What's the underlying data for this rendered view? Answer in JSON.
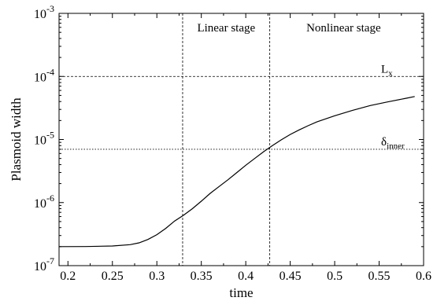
{
  "chart_data": {
    "type": "line",
    "xlabel": "time",
    "ylabel": "Plasmoid width",
    "xlim": [
      0.19,
      0.6
    ],
    "ylim": [
      1e-07,
      0.001
    ],
    "yscale": "log",
    "grid": false,
    "x_ticks": [
      {
        "value": 0.2,
        "label": "0.2"
      },
      {
        "value": 0.25,
        "label": "0.25"
      },
      {
        "value": 0.3,
        "label": "0.3"
      },
      {
        "value": 0.35,
        "label": "0.35"
      },
      {
        "value": 0.4,
        "label": "0.4"
      },
      {
        "value": 0.45,
        "label": "0.45"
      },
      {
        "value": 0.5,
        "label": "0.5"
      },
      {
        "value": 0.55,
        "label": "0.55"
      },
      {
        "value": 0.6,
        "label": "0.6"
      }
    ],
    "y_ticks": [
      {
        "value": 1e-07,
        "base": "10",
        "exp": "-7"
      },
      {
        "value": 1e-06,
        "base": "10",
        "exp": "-6"
      },
      {
        "value": 1e-05,
        "base": "10",
        "exp": "-5"
      },
      {
        "value": 0.0001,
        "base": "10",
        "exp": "-4"
      },
      {
        "value": 0.001,
        "base": "10",
        "exp": "-3"
      }
    ],
    "series": [
      {
        "points": [
          [
            0.19,
            2e-07
          ],
          [
            0.22,
            2.01e-07
          ],
          [
            0.25,
            2.05e-07
          ],
          [
            0.27,
            2.15e-07
          ],
          [
            0.28,
            2.3e-07
          ],
          [
            0.29,
            2.6e-07
          ],
          [
            0.3,
            3.1e-07
          ],
          [
            0.31,
            3.9e-07
          ],
          [
            0.32,
            5.1e-07
          ],
          [
            0.33,
            6.3e-07
          ],
          [
            0.34,
            8e-07
          ],
          [
            0.35,
            1.05e-06
          ],
          [
            0.36,
            1.4e-06
          ],
          [
            0.37,
            1.8e-06
          ],
          [
            0.38,
            2.3e-06
          ],
          [
            0.39,
            3e-06
          ],
          [
            0.4,
            3.9e-06
          ],
          [
            0.41,
            5e-06
          ],
          [
            0.42,
            6.4e-06
          ],
          [
            0.43,
            8e-06
          ],
          [
            0.44,
            9.9e-06
          ],
          [
            0.45,
            1.2e-05
          ],
          [
            0.46,
            1.42e-05
          ],
          [
            0.47,
            1.65e-05
          ],
          [
            0.48,
            1.9e-05
          ],
          [
            0.5,
            2.38e-05
          ],
          [
            0.52,
            2.9e-05
          ],
          [
            0.54,
            3.45e-05
          ],
          [
            0.56,
            3.95e-05
          ],
          [
            0.58,
            4.5e-05
          ],
          [
            0.59,
            4.8e-05
          ]
        ]
      }
    ],
    "reference_lines": [
      {
        "orientation": "horizontal",
        "value": 0.0001,
        "style": "dashed",
        "label": "L",
        "label_sub": "x"
      },
      {
        "orientation": "horizontal",
        "value": 7e-06,
        "style": "dotted",
        "label": "δ",
        "label_sub": "inner"
      },
      {
        "orientation": "vertical",
        "value": 0.329,
        "style": "dashed"
      },
      {
        "orientation": "vertical",
        "value": 0.427,
        "style": "dashed"
      }
    ],
    "annotations": [
      {
        "text": "Linear stage",
        "x": 0.378,
        "y": 0.00052
      },
      {
        "text": "Nonlinear stage",
        "x": 0.51,
        "y": 0.00052
      }
    ]
  }
}
